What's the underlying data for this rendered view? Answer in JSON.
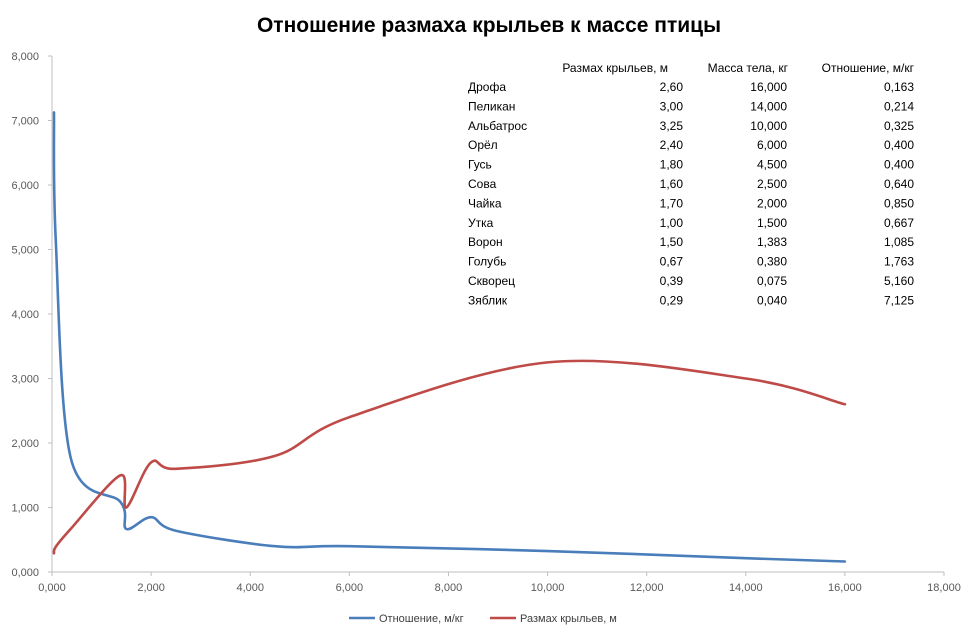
{
  "chart_data": {
    "type": "line",
    "title": "Отношение размаха крыльев к массе птицы",
    "xlabel": "",
    "ylabel": "",
    "xlim": [
      0,
      18
    ],
    "ylim": [
      0,
      8
    ],
    "x_ticks": [
      "0,000",
      "2,000",
      "4,000",
      "6,000",
      "8,000",
      "10,000",
      "12,000",
      "14,000",
      "16,000",
      "18,000"
    ],
    "y_ticks": [
      "0,000",
      "1,000",
      "2,000",
      "3,000",
      "4,000",
      "5,000",
      "6,000",
      "7,000",
      "8,000"
    ],
    "grid": false,
    "legend_position": "bottom",
    "series": [
      {
        "name": "Отношение, м/кг",
        "color": "#4a7ebb",
        "x": [
          0.04,
          0.075,
          0.38,
          1.383,
          1.5,
          2.0,
          2.5,
          4.5,
          6.0,
          10.0,
          14.0,
          16.0
        ],
        "values": [
          7.125,
          5.16,
          1.763,
          1.085,
          0.667,
          0.85,
          0.64,
          0.4,
          0.4,
          0.325,
          0.214,
          0.163
        ]
      },
      {
        "name": "Размах крыльев, м",
        "color": "#be4b48",
        "x": [
          0.04,
          0.075,
          0.38,
          1.383,
          1.5,
          2.0,
          2.5,
          4.5,
          6.0,
          10.0,
          14.0,
          16.0
        ],
        "values": [
          0.29,
          0.39,
          0.67,
          1.5,
          1.0,
          1.7,
          1.6,
          1.8,
          2.4,
          3.25,
          3.0,
          2.6
        ]
      }
    ],
    "table": {
      "headers": [
        "Размах крыльев, м",
        "Масса тела, кг",
        "Отношение, м/кг"
      ],
      "rows": [
        [
          "Дрофа",
          "2,60",
          "16,000",
          "0,163"
        ],
        [
          "Пеликан",
          "3,00",
          "14,000",
          "0,214"
        ],
        [
          "Альбатрос",
          "3,25",
          "10,000",
          "0,325"
        ],
        [
          "Орёл",
          "2,40",
          "6,000",
          "0,400"
        ],
        [
          "Гусь",
          "1,80",
          "4,500",
          "0,400"
        ],
        [
          "Сова",
          "1,60",
          "2,500",
          "0,640"
        ],
        [
          "Чайка",
          "1,70",
          "2,000",
          "0,850"
        ],
        [
          "Утка",
          "1,00",
          "1,500",
          "0,667"
        ],
        [
          "Ворон",
          "1,50",
          "1,383",
          "1,085"
        ],
        [
          "Голубь",
          "0,67",
          "0,380",
          "1,763"
        ],
        [
          "Скворец",
          "0,39",
          "0,075",
          "5,160"
        ],
        [
          "Зяблик",
          "0,29",
          "0,040",
          "7,125"
        ]
      ]
    }
  }
}
